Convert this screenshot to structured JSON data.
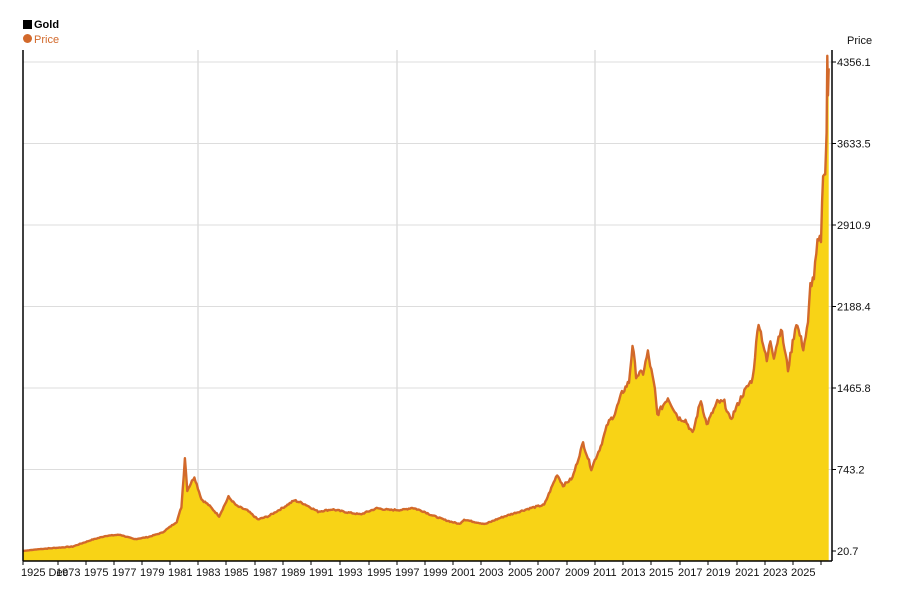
{
  "chart_data": {
    "type": "area",
    "title": "",
    "xlabel": "",
    "ylabel": "Price",
    "ylim": [
      20.7,
      4356.1
    ],
    "grid": true,
    "legend": {
      "placement": "top-left",
      "heading": "Gold",
      "entry": "Price"
    },
    "y_ticks": [
      20.7,
      743.2,
      1465.8,
      2188.4,
      2910.9,
      3633.5,
      4356.1
    ],
    "y_tick_labels": [
      "20.7",
      "743.2",
      "1465.8",
      "2188.4",
      "2910.9",
      "3633.5",
      "4356.1"
    ],
    "x_tick_labels": [
      "1925 Dec",
      "1973",
      "1975",
      "1977",
      "1979",
      "1981",
      "1983",
      "1985",
      "1987",
      "1989",
      "1991",
      "1993",
      "1995",
      "1997",
      "1999",
      "2001",
      "2003",
      "2005",
      "2007",
      "2009",
      "2011",
      "2013",
      "2015",
      "2017",
      "2019",
      "2021",
      "2023",
      "2025"
    ],
    "x_grid_labels": [
      "1983",
      "1997",
      "2011"
    ],
    "colors": {
      "area_fill": "#f8d316",
      "line": "#d2692b",
      "grid": "#dddddd",
      "axis": "#000000",
      "legend_heading": "#000000",
      "legend_entry": "#d2692b"
    },
    "series": [
      {
        "name": "Price",
        "points": [
          [
            "1925-12",
            21
          ],
          [
            "1971-01",
            38
          ],
          [
            "1972-06",
            60
          ],
          [
            "1973-06",
            120
          ],
          [
            "1974-06",
            155
          ],
          [
            "1975-06",
            165
          ],
          [
            "1976-06",
            125
          ],
          [
            "1977-06",
            145
          ],
          [
            "1978-06",
            185
          ],
          [
            "1979-06",
            280
          ],
          [
            "1979-10",
            410
          ],
          [
            "1980-01",
            850
          ],
          [
            "1980-03",
            560
          ],
          [
            "1980-09",
            680
          ],
          [
            "1981-03",
            480
          ],
          [
            "1981-09",
            430
          ],
          [
            "1982-06",
            330
          ],
          [
            "1983-02",
            500
          ],
          [
            "1983-09",
            420
          ],
          [
            "1984-06",
            380
          ],
          [
            "1985-03",
            300
          ],
          [
            "1985-12",
            330
          ],
          [
            "1987-01",
            410
          ],
          [
            "1987-10",
            470
          ],
          [
            "1988-06",
            440
          ],
          [
            "1989-06",
            370
          ],
          [
            "1990-06",
            390
          ],
          [
            "1991-06",
            365
          ],
          [
            "1992-06",
            345
          ],
          [
            "1993-08",
            400
          ],
          [
            "1994-06",
            385
          ],
          [
            "1995-06",
            385
          ],
          [
            "1996-02",
            405
          ],
          [
            "1996-12",
            370
          ],
          [
            "1997-06",
            340
          ],
          [
            "1998-06",
            295
          ],
          [
            "1999-06",
            260
          ],
          [
            "1999-10",
            300
          ],
          [
            "2000-06",
            280
          ],
          [
            "2001-04",
            260
          ],
          [
            "2002-06",
            320
          ],
          [
            "2003-06",
            360
          ],
          [
            "2004-06",
            400
          ],
          [
            "2005-06",
            430
          ],
          [
            "2006-05",
            700
          ],
          [
            "2006-10",
            600
          ],
          [
            "2007-06",
            670
          ],
          [
            "2008-03",
            980
          ],
          [
            "2008-10",
            750
          ],
          [
            "2009-06",
            950
          ],
          [
            "2009-12",
            1150
          ],
          [
            "2010-06",
            1240
          ],
          [
            "2010-12",
            1420
          ],
          [
            "2011-06",
            1520
          ],
          [
            "2011-09",
            1850
          ],
          [
            "2011-12",
            1580
          ],
          [
            "2012-06",
            1600
          ],
          [
            "2012-10",
            1780
          ],
          [
            "2013-04",
            1450
          ],
          [
            "2013-06",
            1230
          ],
          [
            "2014-03",
            1380
          ],
          [
            "2014-06",
            1320
          ],
          [
            "2014-12",
            1200
          ],
          [
            "2015-06",
            1180
          ],
          [
            "2015-12",
            1060
          ],
          [
            "2016-07",
            1360
          ],
          [
            "2016-12",
            1140
          ],
          [
            "2017-09",
            1340
          ],
          [
            "2018-03",
            1340
          ],
          [
            "2018-08",
            1180
          ],
          [
            "2019-06",
            1400
          ],
          [
            "2019-12",
            1500
          ],
          [
            "2020-03",
            1550
          ],
          [
            "2020-08",
            2060
          ],
          [
            "2021-03",
            1700
          ],
          [
            "2021-06",
            1890
          ],
          [
            "2021-09",
            1750
          ],
          [
            "2022-03",
            2000
          ],
          [
            "2022-09",
            1630
          ],
          [
            "2023-04",
            2050
          ],
          [
            "2023-10",
            1820
          ],
          [
            "2024-02",
            2030
          ],
          [
            "2024-04",
            2380
          ],
          [
            "2024-07",
            2450
          ],
          [
            "2024-10",
            2740
          ],
          [
            "2025-01",
            2790
          ],
          [
            "2025-04",
            3400
          ],
          [
            "2025-07",
            3350
          ],
          [
            "2025-09",
            3750
          ],
          [
            "2025-10",
            4356.1
          ],
          [
            "2025-11",
            4050
          ],
          [
            "2025-12",
            4300
          ]
        ]
      }
    ]
  }
}
